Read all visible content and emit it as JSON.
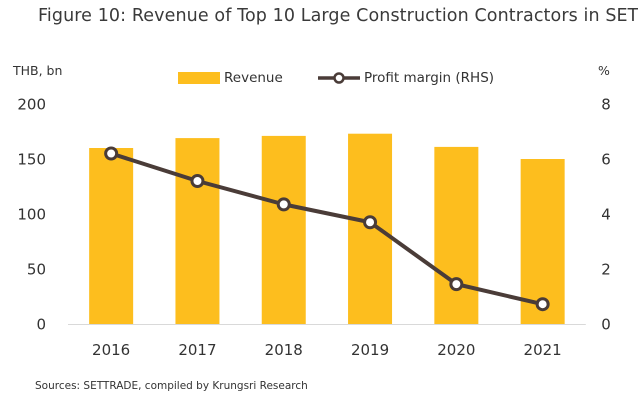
{
  "title": "Figure 10: Revenue of Top 10 Large Construction Contractors  in SET",
  "unit_left": "THB, bn",
  "unit_right": "%",
  "source": "Sources: SETTRADE, compiled by Krungsri Research",
  "colors": {
    "bar": "#FDBE1E",
    "line": "#4A3C38",
    "marker_fill": "#ffffff"
  },
  "chart_data": {
    "type": "bar",
    "categories": [
      "2016",
      "2017",
      "2018",
      "2019",
      "2020",
      "2021"
    ],
    "series": [
      {
        "name": "Revenue",
        "type": "bar",
        "axis": "left",
        "values": [
          160,
          169,
          171,
          173,
          161,
          150
        ]
      },
      {
        "name": "Profit margin (RHS)",
        "type": "line",
        "axis": "right",
        "values": [
          6.2,
          5.2,
          4.35,
          3.7,
          1.45,
          0.72
        ]
      }
    ],
    "y_left": {
      "range": [
        0,
        200
      ],
      "ticks": [
        "0",
        "50",
        "100",
        "150",
        "200"
      ]
    },
    "y_right": {
      "range": [
        0,
        8
      ],
      "ticks": [
        "0",
        "2",
        "4",
        "6",
        "8"
      ]
    },
    "legend_position": "top-center",
    "grid": false
  }
}
